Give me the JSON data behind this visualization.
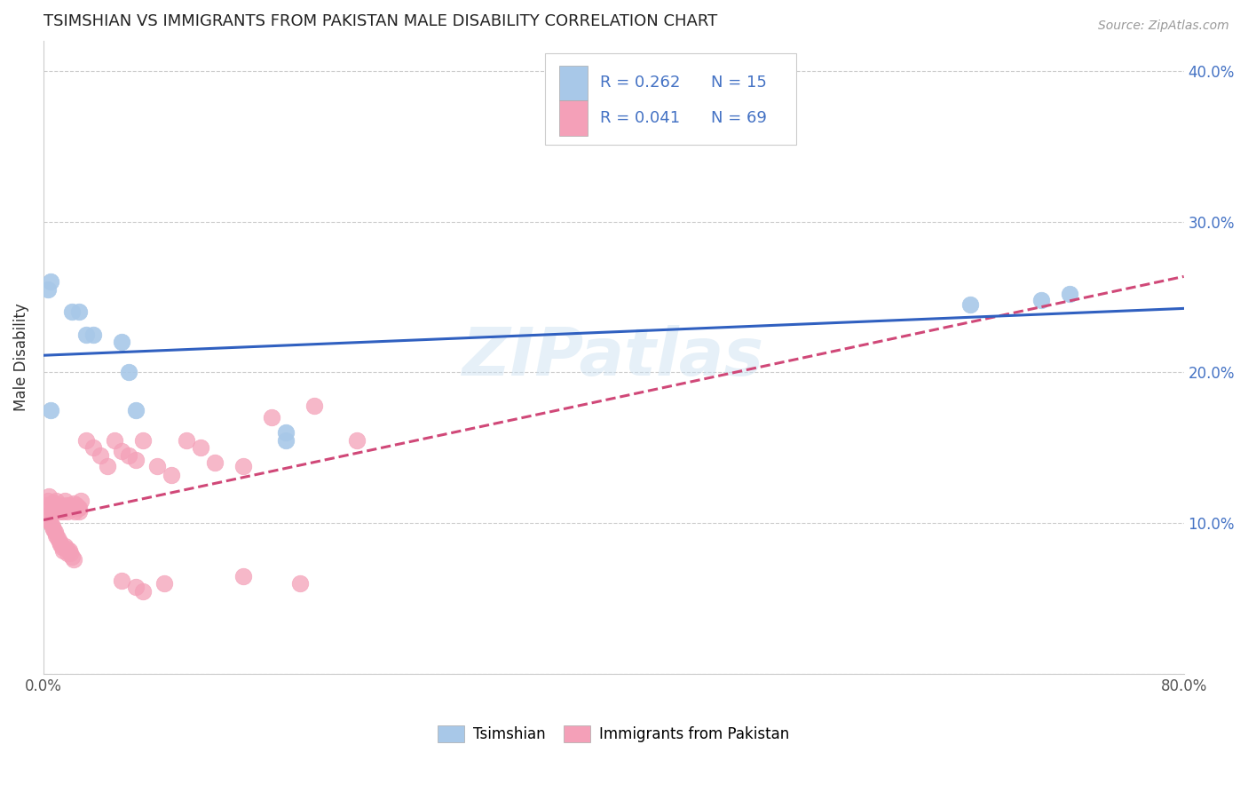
{
  "title": "TSIMSHIAN VS IMMIGRANTS FROM PAKISTAN MALE DISABILITY CORRELATION CHART",
  "source": "Source: ZipAtlas.com",
  "ylabel": "Male Disability",
  "xlim": [
    0.0,
    0.8
  ],
  "ylim": [
    0.0,
    0.42
  ],
  "x_tick_positions": [
    0.0,
    0.1,
    0.2,
    0.3,
    0.4,
    0.5,
    0.6,
    0.7,
    0.8
  ],
  "x_tick_labels": [
    "0.0%",
    "",
    "",
    "",
    "",
    "",
    "",
    "",
    "80.0%"
  ],
  "y_tick_positions": [
    0.0,
    0.1,
    0.2,
    0.3,
    0.4
  ],
  "y_tick_labels_right": [
    "",
    "10.0%",
    "20.0%",
    "30.0%",
    "40.0%"
  ],
  "tsimshian_color": "#a8c8e8",
  "pakistan_color": "#f4a0b8",
  "trendline_tsimshian_color": "#3060c0",
  "trendline_pakistan_color": "#d04878",
  "R_tsimshian": 0.262,
  "N_tsimshian": 15,
  "R_pakistan": 0.041,
  "N_pakistan": 69,
  "watermark": "ZIPatlas",
  "legend_labels": [
    "Tsimshian",
    "Immigrants from Pakistan"
  ],
  "ts_x": [
    0.003,
    0.005,
    0.02,
    0.025,
    0.03,
    0.035,
    0.055,
    0.06,
    0.065,
    0.17,
    0.17,
    0.65,
    0.7,
    0.72,
    0.005
  ],
  "ts_y": [
    0.255,
    0.26,
    0.24,
    0.24,
    0.225,
    0.225,
    0.22,
    0.2,
    0.175,
    0.155,
    0.16,
    0.245,
    0.248,
    0.252,
    0.175
  ],
  "pk_x": [
    0.002,
    0.003,
    0.004,
    0.005,
    0.006,
    0.007,
    0.008,
    0.009,
    0.01,
    0.011,
    0.012,
    0.013,
    0.014,
    0.015,
    0.016,
    0.017,
    0.018,
    0.019,
    0.02,
    0.021,
    0.022,
    0.023,
    0.024,
    0.025,
    0.026,
    0.003,
    0.004,
    0.005,
    0.006,
    0.007,
    0.008,
    0.009,
    0.01,
    0.011,
    0.012,
    0.013,
    0.014,
    0.015,
    0.016,
    0.017,
    0.018,
    0.019,
    0.02,
    0.021,
    0.025,
    0.03,
    0.035,
    0.04,
    0.045,
    0.05,
    0.055,
    0.06,
    0.065,
    0.07,
    0.08,
    0.09,
    0.1,
    0.11,
    0.12,
    0.14,
    0.16,
    0.19,
    0.22,
    0.14,
    0.18,
    0.065,
    0.055,
    0.07,
    0.085
  ],
  "pk_y": [
    0.112,
    0.115,
    0.118,
    0.11,
    0.108,
    0.114,
    0.112,
    0.115,
    0.11,
    0.108,
    0.112,
    0.11,
    0.108,
    0.115,
    0.112,
    0.108,
    0.11,
    0.112,
    0.11,
    0.113,
    0.108,
    0.112,
    0.11,
    0.108,
    0.115,
    0.105,
    0.102,
    0.1,
    0.098,
    0.096,
    0.094,
    0.092,
    0.09,
    0.088,
    0.086,
    0.084,
    0.082,
    0.085,
    0.083,
    0.08,
    0.082,
    0.08,
    0.078,
    0.076,
    0.11,
    0.155,
    0.15,
    0.145,
    0.138,
    0.155,
    0.148,
    0.145,
    0.142,
    0.155,
    0.138,
    0.132,
    0.155,
    0.15,
    0.14,
    0.138,
    0.17,
    0.178,
    0.155,
    0.065,
    0.06,
    0.058,
    0.062,
    0.055,
    0.06
  ]
}
